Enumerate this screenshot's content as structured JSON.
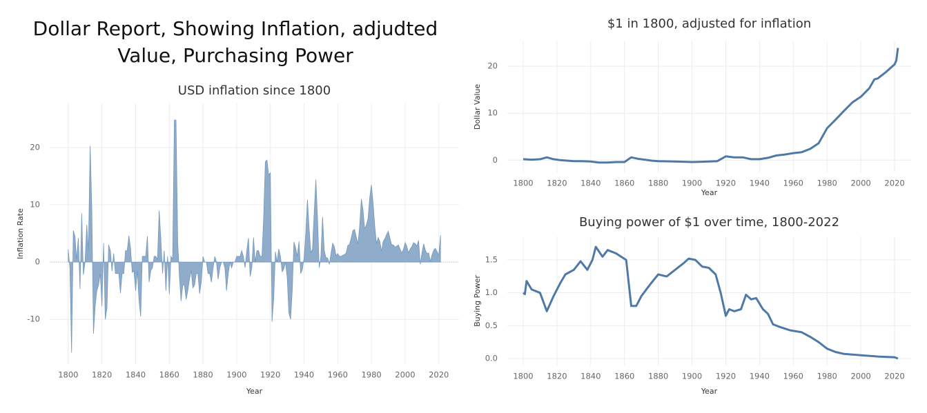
{
  "title": "Dollar Report, Showing Inflation, adjudted Value, Purchasing Power",
  "chart_data": [
    {
      "type": "area",
      "title": "USD inflation since 1800",
      "x_label": "Year",
      "y_label": "Inflation Rate",
      "color": "#8aa8c8",
      "grid": true,
      "xlim": [
        1789,
        2032
      ],
      "xticks": [
        1800,
        1820,
        1840,
        1860,
        1880,
        1900,
        1920,
        1940,
        1960,
        1980,
        2000,
        2020
      ],
      "ylim": [
        -17.8,
        27.7
      ],
      "yticks": [
        -10,
        0,
        10,
        20
      ],
      "x": [
        1800,
        1801,
        1802,
        1803,
        1804,
        1805,
        1806,
        1807,
        1808,
        1809,
        1810,
        1811,
        1812,
        1813,
        1814,
        1815,
        1816,
        1817,
        1818,
        1819,
        1820,
        1821,
        1822,
        1823,
        1824,
        1825,
        1826,
        1827,
        1828,
        1829,
        1830,
        1831,
        1832,
        1833,
        1834,
        1835,
        1836,
        1837,
        1838,
        1839,
        1840,
        1841,
        1842,
        1843,
        1844,
        1845,
        1846,
        1847,
        1848,
        1849,
        1850,
        1851,
        1852,
        1853,
        1854,
        1855,
        1856,
        1857,
        1858,
        1859,
        1860,
        1861,
        1862,
        1863,
        1864,
        1865,
        1866,
        1867,
        1868,
        1869,
        1870,
        1871,
        1872,
        1873,
        1874,
        1875,
        1876,
        1877,
        1878,
        1879,
        1880,
        1881,
        1882,
        1883,
        1884,
        1885,
        1886,
        1887,
        1888,
        1889,
        1890,
        1891,
        1892,
        1893,
        1894,
        1895,
        1896,
        1897,
        1898,
        1899,
        1900,
        1901,
        1902,
        1903,
        1904,
        1905,
        1906,
        1907,
        1908,
        1909,
        1910,
        1911,
        1912,
        1913,
        1914,
        1915,
        1916,
        1917,
        1918,
        1919,
        1920,
        1921,
        1922,
        1923,
        1924,
        1925,
        1926,
        1927,
        1928,
        1929,
        1930,
        1931,
        1932,
        1933,
        1934,
        1935,
        1936,
        1937,
        1938,
        1939,
        1940,
        1941,
        1942,
        1943,
        1944,
        1945,
        1946,
        1947,
        1948,
        1949,
        1950,
        1951,
        1952,
        1953,
        1954,
        1955,
        1956,
        1957,
        1958,
        1959,
        1960,
        1961,
        1962,
        1963,
        1964,
        1965,
        1966,
        1967,
        1968,
        1969,
        1970,
        1971,
        1972,
        1973,
        1974,
        1975,
        1976,
        1977,
        1978,
        1979,
        1980,
        1981,
        1982,
        1983,
        1984,
        1985,
        1986,
        1987,
        1988,
        1989,
        1990,
        1991,
        1992,
        1993,
        1994,
        1995,
        1996,
        1997,
        1998,
        1999,
        2000,
        2001,
        2002,
        2003,
        2004,
        2005,
        2006,
        2007,
        2008,
        2009,
        2010,
        2011,
        2012,
        2013,
        2014,
        2015,
        2016,
        2017,
        2018,
        2019,
        2020,
        2021
      ],
      "values": [
        2.2,
        -1,
        -15.8,
        5.5,
        4.5,
        0.5,
        4.2,
        -4.7,
        8.5,
        -2.2,
        0,
        6.5,
        2,
        20.3,
        9.5,
        -12.5,
        -7.6,
        -5,
        -4,
        -2,
        -7.7,
        3.3,
        -10,
        -8,
        3,
        2,
        -1.6,
        1.5,
        -2,
        -2,
        -2,
        -5.4,
        -2,
        -2,
        2,
        2,
        4.6,
        2.5,
        -1.8,
        -1.5,
        -5,
        -1.5,
        -6.5,
        -9.5,
        1,
        1,
        1,
        4.5,
        -3.5,
        -1.5,
        -1,
        1,
        1,
        0.5,
        9,
        4,
        -2,
        2,
        -5,
        1,
        -5.6,
        1,
        0.5,
        24.8,
        24.8,
        3.5,
        -2.5,
        -6.8,
        -4,
        -4,
        -6.5,
        -5,
        -3,
        -1.5,
        -4.5,
        -4,
        -2,
        -2,
        -5.5,
        -3.5,
        1,
        0,
        0,
        -2,
        -2,
        -3.5,
        -1,
        1,
        0,
        -3,
        -1,
        0,
        0,
        -1,
        -5,
        -2,
        0,
        -1,
        0,
        0,
        1,
        1,
        1,
        2,
        1,
        -1,
        2,
        4.2,
        -2.5,
        -1,
        4.3,
        0,
        2,
        2,
        1,
        1,
        7.6,
        17.5,
        17.8,
        15.2,
        15.6,
        -10.4,
        -6.3,
        1.8,
        0,
        2.3,
        1,
        -1.7,
        -1.2,
        0,
        -2.7,
        -8.9,
        -10,
        -5,
        3.5,
        2.5,
        1,
        3.6,
        -2,
        -1.3,
        0.7,
        5,
        10.9,
        6,
        1.6,
        2.3,
        8.5,
        14.4,
        7.7,
        -1,
        1,
        7.9,
        2,
        0.8,
        0.7,
        -0.4,
        1.5,
        3.3,
        2.7,
        1.1,
        1.5,
        1,
        1,
        1.2,
        1.3,
        1.6,
        2.9,
        3.1,
        4.2,
        5.5,
        5.7,
        4.4,
        3.2,
        6.2,
        11,
        9.1,
        5.8,
        6.5,
        7.6,
        11.3,
        13.5,
        10.3,
        6.2,
        3.2,
        4.3,
        3.6,
        1.9,
        3.6,
        4.1,
        4.8,
        5.4,
        4.2,
        3,
        3,
        2.6,
        2.8,
        3,
        2.3,
        1.6,
        2.2,
        3.4,
        2.8,
        1.6,
        2.3,
        2.7,
        3.4,
        3.2,
        2.8,
        3.8,
        -0.4,
        1.6,
        3.2,
        2.1,
        1.5,
        1.6,
        0.1,
        1.3,
        2.1,
        2.4,
        1.8,
        1.2,
        4.7
      ]
    },
    {
      "type": "line",
      "title": "$1 in 1800, adjusted for inflation",
      "x_label": "Year",
      "y_label": "Dollar Value",
      "color": "#4e79a7",
      "grid": true,
      "xlim": [
        1790.6,
        2029.8
      ],
      "xticks": [
        1800,
        1820,
        1840,
        1860,
        1880,
        1900,
        1920,
        1940,
        1960,
        1980,
        2000,
        2020
      ],
      "ylim": [
        -2.6,
        25.3
      ],
      "yticks": [
        0,
        10,
        20
      ],
      "x": [
        1800,
        1805,
        1810,
        1814,
        1818,
        1822,
        1826,
        1830,
        1835,
        1840,
        1845,
        1850,
        1855,
        1860,
        1864,
        1868,
        1872,
        1876,
        1880,
        1890,
        1900,
        1910,
        1915,
        1920,
        1925,
        1930,
        1935,
        1940,
        1945,
        1950,
        1955,
        1960,
        1965,
        1970,
        1975,
        1980,
        1985,
        1990,
        1995,
        2000,
        2005,
        2008,
        2010,
        2015,
        2020,
        2021,
        2022
      ],
      "values": [
        0.2,
        0.1,
        0.2,
        0.6,
        0.2,
        0,
        -0.1,
        -0.2,
        -0.2,
        -0.3,
        -0.5,
        -0.5,
        -0.4,
        -0.4,
        0.6,
        0.3,
        0.1,
        -0.1,
        -0.2,
        -0.3,
        -0.4,
        -0.3,
        -0.2,
        0.8,
        0.6,
        0.6,
        0.2,
        0.2,
        0.5,
        1.0,
        1.2,
        1.5,
        1.7,
        2.4,
        3.6,
        6.8,
        8.6,
        10.5,
        12.3,
        13.5,
        15.3,
        17.2,
        17.4,
        18.8,
        20.4,
        21.2,
        23.9
      ]
    },
    {
      "type": "line",
      "title": "Buying power of $1 over time, 1800-2022",
      "x_label": "Year",
      "y_label": "Buying Power",
      "color": "#4e79a7",
      "grid": true,
      "xlim": [
        1790.6,
        2029.8
      ],
      "xticks": [
        1800,
        1820,
        1840,
        1860,
        1880,
        1900,
        1920,
        1940,
        1960,
        1980,
        2000,
        2020
      ],
      "ylim": [
        -0.105,
        1.857
      ],
      "yticks": [
        {
          "value": 0,
          "label": "0.0"
        },
        0.5,
        {
          "value": 1,
          "label": "1.0"
        },
        1.5
      ],
      "x": [
        1800,
        1801,
        1802,
        1805,
        1810,
        1814,
        1818,
        1822,
        1825,
        1830,
        1834,
        1838,
        1841,
        1843,
        1847,
        1850,
        1855,
        1858,
        1861,
        1864,
        1867,
        1870,
        1875,
        1880,
        1885,
        1890,
        1895,
        1898,
        1902,
        1906,
        1910,
        1914,
        1917,
        1920,
        1922,
        1925,
        1929,
        1932,
        1935,
        1938,
        1942,
        1945,
        1948,
        1952,
        1958,
        1965,
        1970,
        1975,
        1980,
        1985,
        1990,
        2000,
        2010,
        2020,
        2022
      ],
      "values": [
        1.0,
        0.98,
        1.18,
        1.05,
        1.0,
        0.72,
        0.95,
        1.15,
        1.28,
        1.35,
        1.48,
        1.35,
        1.5,
        1.7,
        1.55,
        1.65,
        1.6,
        1.55,
        1.5,
        0.8,
        0.8,
        0.95,
        1.12,
        1.28,
        1.25,
        1.35,
        1.45,
        1.52,
        1.5,
        1.4,
        1.38,
        1.28,
        1.0,
        0.65,
        0.75,
        0.72,
        0.75,
        0.97,
        0.9,
        0.92,
        0.75,
        0.68,
        0.52,
        0.48,
        0.43,
        0.4,
        0.33,
        0.25,
        0.15,
        0.1,
        0.07,
        0.05,
        0.03,
        0.02,
        0.0
      ]
    }
  ]
}
